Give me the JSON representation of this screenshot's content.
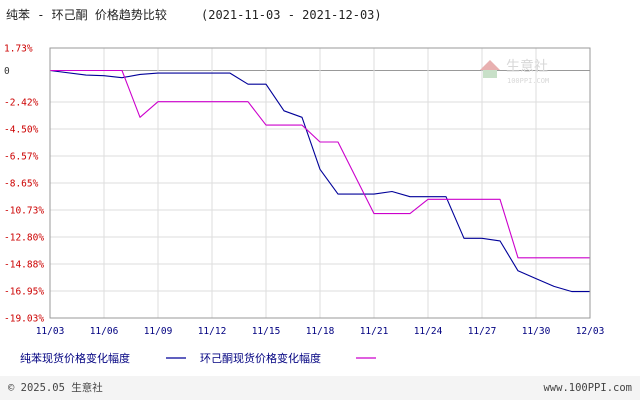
{
  "chart_data": {
    "type": "line",
    "title": "纯苯 - 环己酮 价格趋势比较",
    "date_range": "(2021-11-03 - 2021-12-03)",
    "x": [
      "2021-11-03",
      "2021-11-05",
      "2021-11-07",
      "2021-11-08",
      "2021-11-09",
      "2021-11-10",
      "2021-11-11",
      "2021-11-12",
      "2021-11-13",
      "2021-11-14",
      "2021-11-15",
      "2021-11-16",
      "2021-11-17",
      "2021-11-18",
      "2021-11-19",
      "2021-11-20",
      "2021-11-21",
      "2021-11-22",
      "2021-11-23",
      "2021-11-24",
      "2021-11-25",
      "2021-11-26",
      "2021-11-27",
      "2021-11-28",
      "2021-11-29",
      "2021-11-30",
      "2021-12-01",
      "2021-12-02",
      "2021-12-03"
    ],
    "x_tick_labels": [
      "11/03",
      "11/06",
      "11/09",
      "11/12",
      "11/15",
      "11/18",
      "11/21",
      "11/24",
      "11/27",
      "11/30",
      "12/03"
    ],
    "y_tick_labels": [
      "1.73%",
      "0",
      "-2.42%",
      "-4.50%",
      "-6.57%",
      "-8.65%",
      "-10.73%",
      "-12.80%",
      "-14.88%",
      "-16.95%",
      "-19.03%"
    ],
    "y_ticks": [
      1.73,
      0,
      -2.42,
      -4.5,
      -6.57,
      -8.65,
      -10.73,
      -12.8,
      -14.88,
      -16.95,
      -19.03
    ],
    "ylim": [
      -19.03,
      1.73
    ],
    "grid": true,
    "legend_position": "bottom",
    "series": [
      {
        "name": "纯苯现货价格变化幅度",
        "color": "#000099",
        "points": [
          [
            "2021-11-03",
            0
          ],
          [
            "2021-11-05",
            -0.35
          ],
          [
            "2021-11-06",
            -0.4
          ],
          [
            "2021-11-07",
            -0.55
          ],
          [
            "2021-11-08",
            -0.3
          ],
          [
            "2021-11-09",
            -0.2
          ],
          [
            "2021-11-13",
            -0.2
          ],
          [
            "2021-11-14",
            -1.05
          ],
          [
            "2021-11-15",
            -1.05
          ],
          [
            "2021-11-16",
            -3.1
          ],
          [
            "2021-11-17",
            -3.6
          ],
          [
            "2021-11-18",
            -7.6
          ],
          [
            "2021-11-19",
            -9.5
          ],
          [
            "2021-11-21",
            -9.5
          ],
          [
            "2021-11-22",
            -9.3
          ],
          [
            "2021-11-23",
            -9.7
          ],
          [
            "2021-11-25",
            -9.7
          ],
          [
            "2021-11-26",
            -12.9
          ],
          [
            "2021-11-27",
            -12.9
          ],
          [
            "2021-11-28",
            -13.1
          ],
          [
            "2021-11-29",
            -15.4
          ],
          [
            "2021-11-30",
            -16.0
          ],
          [
            "2021-12-01",
            -16.6
          ],
          [
            "2021-12-02",
            -17.0
          ],
          [
            "2021-12-03",
            -17.0
          ]
        ]
      },
      {
        "name": "环己酮现货价格变化幅度",
        "color": "#cc00cc",
        "points": [
          [
            "2021-11-03",
            0
          ],
          [
            "2021-11-07",
            0
          ],
          [
            "2021-11-08",
            -3.6
          ],
          [
            "2021-11-09",
            -2.4
          ],
          [
            "2021-11-14",
            -2.4
          ],
          [
            "2021-11-15",
            -4.2
          ],
          [
            "2021-11-17",
            -4.2
          ],
          [
            "2021-11-18",
            -5.5
          ],
          [
            "2021-11-19",
            -5.5
          ],
          [
            "2021-11-21",
            -11.0
          ],
          [
            "2021-11-23",
            -11.0
          ],
          [
            "2021-11-24",
            -9.9
          ],
          [
            "2021-11-28",
            -9.9
          ],
          [
            "2021-11-29",
            -14.4
          ],
          [
            "2021-12-03",
            -14.4
          ]
        ]
      }
    ]
  },
  "watermark": {
    "brand": "生意社",
    "url": "100PPI.COM"
  },
  "footer": {
    "copyright": "© 2025.05 生意社",
    "site": "www.100PPI.com"
  },
  "colors": {
    "grid": "#dddddd",
    "plot_border": "#999999",
    "tick_pos": "#cc0000",
    "tick_neg": "#cc0000",
    "tick_zero": "#333333",
    "x_tick": "#000080",
    "footer_bg": "#f4f4f4"
  }
}
